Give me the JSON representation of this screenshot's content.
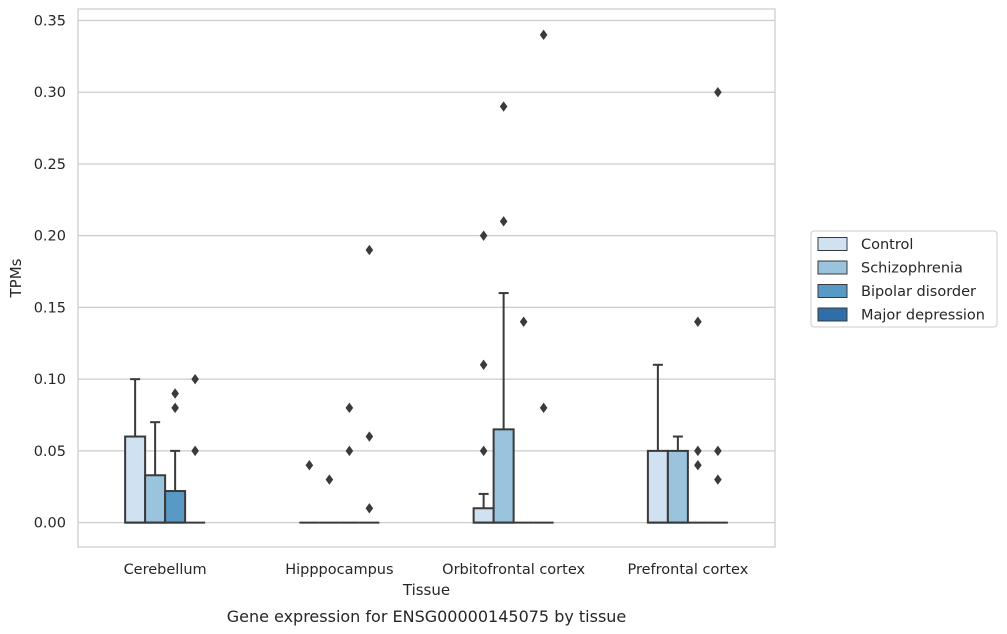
{
  "chart_data": {
    "type": "boxplot",
    "caption": "Gene expression for ENSG00000145075 by tissue",
    "xlabel": "Tissue",
    "ylabel": "TPMs",
    "ylim": [
      -0.017,
      0.358
    ],
    "yticks": [
      "0.00",
      "0.05",
      "0.10",
      "0.15",
      "0.20",
      "0.25",
      "0.30",
      "0.35"
    ],
    "grid": "horizontal",
    "legend_position": "right",
    "categories": [
      "Cerebellum",
      "Hipppocampus",
      "Orbitofrontal cortex",
      "Prefrontal cortex"
    ],
    "series": [
      {
        "name": "Control",
        "color": "#d0e1f2",
        "boxes": [
          {
            "q1": 0.0,
            "median": 0.0,
            "q3": 0.06,
            "whisker_low": 0.0,
            "whisker_high": 0.1,
            "outliers": []
          },
          {
            "q1": 0.0,
            "median": 0.0,
            "q3": 0.0,
            "whisker_low": 0.0,
            "whisker_high": 0.0,
            "outliers": [
              0.04
            ]
          },
          {
            "q1": 0.0,
            "median": 0.0,
            "q3": 0.01,
            "whisker_low": 0.0,
            "whisker_high": 0.02,
            "outliers": [
              0.05,
              0.11,
              0.2
            ]
          },
          {
            "q1": 0.0,
            "median": 0.0,
            "q3": 0.05,
            "whisker_low": 0.0,
            "whisker_high": 0.11,
            "outliers": []
          }
        ]
      },
      {
        "name": "Schizophrenia",
        "color": "#9ac4dd",
        "boxes": [
          {
            "q1": 0.0,
            "median": 0.0,
            "q3": 0.033,
            "whisker_low": 0.0,
            "whisker_high": 0.07,
            "outliers": []
          },
          {
            "q1": 0.0,
            "median": 0.0,
            "q3": 0.0,
            "whisker_low": 0.0,
            "whisker_high": 0.0,
            "outliers": [
              0.03
            ]
          },
          {
            "q1": 0.0,
            "median": 0.0,
            "q3": 0.065,
            "whisker_low": 0.0,
            "whisker_high": 0.16,
            "outliers": [
              0.21,
              0.29
            ]
          },
          {
            "q1": 0.0,
            "median": 0.0,
            "q3": 0.05,
            "whisker_low": 0.0,
            "whisker_high": 0.06,
            "outliers": []
          }
        ]
      },
      {
        "name": "Bipolar disorder",
        "color": "#5899c6",
        "boxes": [
          {
            "q1": 0.0,
            "median": 0.0,
            "q3": 0.022,
            "whisker_low": 0.0,
            "whisker_high": 0.05,
            "outliers": [
              0.08,
              0.09
            ]
          },
          {
            "q1": 0.0,
            "median": 0.0,
            "q3": 0.0,
            "whisker_low": 0.0,
            "whisker_high": 0.0,
            "outliers": [
              0.05,
              0.08
            ]
          },
          {
            "q1": 0.0,
            "median": 0.0,
            "q3": 0.0,
            "whisker_low": 0.0,
            "whisker_high": 0.0,
            "outliers": [
              0.14
            ]
          },
          {
            "q1": 0.0,
            "median": 0.0,
            "q3": 0.0,
            "whisker_low": 0.0,
            "whisker_high": 0.0,
            "outliers": [
              0.04,
              0.05,
              0.14
            ]
          }
        ]
      },
      {
        "name": "Major depression",
        "color": "#2f6ea8",
        "boxes": [
          {
            "q1": 0.0,
            "median": 0.0,
            "q3": 0.0,
            "whisker_low": 0.0,
            "whisker_high": 0.0,
            "outliers": [
              0.05,
              0.1
            ]
          },
          {
            "q1": 0.0,
            "median": 0.0,
            "q3": 0.0,
            "whisker_low": 0.0,
            "whisker_high": 0.0,
            "outliers": [
              0.01,
              0.06,
              0.19
            ]
          },
          {
            "q1": 0.0,
            "median": 0.0,
            "q3": 0.0,
            "whisker_low": 0.0,
            "whisker_high": 0.0,
            "outliers": [
              0.08,
              0.34
            ]
          },
          {
            "q1": 0.0,
            "median": 0.0,
            "q3": 0.0,
            "whisker_low": 0.0,
            "whisker_high": 0.0,
            "outliers": [
              0.03,
              0.05,
              0.3
            ]
          }
        ]
      }
    ]
  },
  "colors": {
    "grid": "#cccccc",
    "frame": "#cccccc",
    "box_edge": "#3a3a3a",
    "text": "#262626"
  }
}
